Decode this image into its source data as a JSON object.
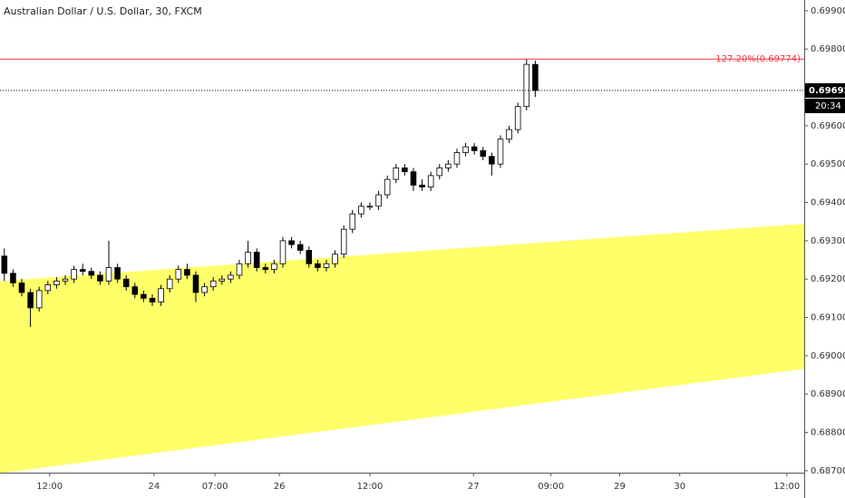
{
  "chart_data": {
    "type": "candlestick",
    "title": "Australian Dollar / U.S. Dollar, 30, FXCM",
    "x": [
      0,
      1,
      2,
      3,
      4,
      5,
      6,
      7,
      8,
      9,
      10,
      11,
      12,
      13,
      14,
      15,
      16,
      17,
      18,
      19,
      20,
      21,
      22,
      23,
      24,
      25,
      26,
      27,
      28,
      29,
      30,
      31,
      32,
      33,
      34,
      35,
      36,
      37,
      38,
      39,
      40,
      41,
      42,
      43,
      44,
      45,
      46,
      47,
      48,
      49,
      50,
      51,
      52,
      53,
      54,
      55,
      56,
      57,
      58,
      59,
      60,
      61
    ],
    "open": [
      0.6926,
      0.69215,
      0.6919,
      0.69165,
      0.69125,
      0.6917,
      0.69185,
      0.69195,
      0.692,
      0.69225,
      0.6922,
      0.6921,
      0.69195,
      0.6923,
      0.692,
      0.6918,
      0.6916,
      0.6915,
      0.6914,
      0.69175,
      0.692,
      0.69225,
      0.6921,
      0.69165,
      0.6918,
      0.69195,
      0.692,
      0.6921,
      0.6924,
      0.6927,
      0.6923,
      0.69225,
      0.6924,
      0.693,
      0.6929,
      0.69275,
      0.6924,
      0.6923,
      0.6924,
      0.69265,
      0.6933,
      0.6937,
      0.6939,
      0.6939,
      0.6942,
      0.6946,
      0.6949,
      0.6948,
      0.69445,
      0.6944,
      0.6947,
      0.6949,
      0.695,
      0.6953,
      0.69545,
      0.69535,
      0.6952,
      0.695,
      0.69565,
      0.6959,
      0.6965,
      0.6976
    ],
    "high": [
      0.6928,
      0.69225,
      0.692,
      0.69175,
      0.6918,
      0.69195,
      0.69205,
      0.6921,
      0.69235,
      0.6924,
      0.6923,
      0.6922,
      0.693,
      0.6924,
      0.6921,
      0.6919,
      0.6917,
      0.6916,
      0.69185,
      0.6921,
      0.69235,
      0.6924,
      0.6922,
      0.6919,
      0.69205,
      0.6921,
      0.6922,
      0.6925,
      0.693,
      0.6928,
      0.6924,
      0.6925,
      0.6931,
      0.6931,
      0.693,
      0.69285,
      0.6925,
      0.6925,
      0.69275,
      0.6934,
      0.6938,
      0.694,
      0.694,
      0.6943,
      0.6947,
      0.695,
      0.695,
      0.6949,
      0.6946,
      0.6948,
      0.695,
      0.6951,
      0.6954,
      0.69555,
      0.69555,
      0.69545,
      0.6953,
      0.69575,
      0.696,
      0.6966,
      0.69774,
      0.6977
    ],
    "low": [
      0.69195,
      0.6918,
      0.69155,
      0.69075,
      0.69115,
      0.6916,
      0.69175,
      0.69185,
      0.6919,
      0.6921,
      0.692,
      0.69185,
      0.69185,
      0.6919,
      0.6917,
      0.6915,
      0.6914,
      0.6913,
      0.6913,
      0.69165,
      0.6919,
      0.692,
      0.6914,
      0.69155,
      0.6917,
      0.69185,
      0.6919,
      0.692,
      0.6923,
      0.6922,
      0.69215,
      0.69215,
      0.6923,
      0.6928,
      0.69265,
      0.6923,
      0.6922,
      0.6922,
      0.6923,
      0.69255,
      0.6932,
      0.6936,
      0.6938,
      0.6938,
      0.6941,
      0.6945,
      0.6947,
      0.6943,
      0.6943,
      0.6943,
      0.6946,
      0.6948,
      0.6949,
      0.6952,
      0.69525,
      0.6951,
      0.6947,
      0.6949,
      0.69555,
      0.6958,
      0.6964,
      0.69675
    ],
    "close": [
      0.69215,
      0.6919,
      0.69165,
      0.69125,
      0.6917,
      0.69185,
      0.69195,
      0.692,
      0.69225,
      0.6922,
      0.6921,
      0.69195,
      0.6923,
      0.692,
      0.6918,
      0.6916,
      0.6915,
      0.6914,
      0.69175,
      0.692,
      0.69225,
      0.6921,
      0.69165,
      0.6918,
      0.69195,
      0.692,
      0.6921,
      0.6924,
      0.6927,
      0.6923,
      0.69225,
      0.6924,
      0.693,
      0.6929,
      0.69275,
      0.6924,
      0.6923,
      0.6924,
      0.69265,
      0.6933,
      0.6937,
      0.6939,
      0.6939,
      0.6942,
      0.6946,
      0.6949,
      0.6948,
      0.69445,
      0.6944,
      0.6947,
      0.6949,
      0.695,
      0.6953,
      0.69545,
      0.69535,
      0.6952,
      0.695,
      0.69565,
      0.6959,
      0.6965,
      0.6976,
      0.69692
    ],
    "up_color": "#ffffff",
    "down_color": "#000000",
    "xlim": [
      -0.5,
      91.9
    ],
    "xticks": [
      {
        "value": 5.2,
        "label": "12:00"
      },
      {
        "value": 17.2,
        "label": "24"
      },
      {
        "value": 24.2,
        "label": "07:00"
      },
      {
        "value": 31.6,
        "label": "26"
      },
      {
        "value": 42,
        "label": "12:00"
      },
      {
        "value": 53.9,
        "label": "27"
      },
      {
        "value": 62.8,
        "label": "09:00"
      },
      {
        "value": 70.7,
        "label": "29"
      },
      {
        "value": 77.6,
        "label": "30"
      },
      {
        "value": 89.9,
        "label": "12:00"
      }
    ],
    "ylim": [
      0.68695,
      0.69928
    ],
    "yticks": [
      {
        "value": 0.699,
        "label": "0.69900"
      },
      {
        "value": 0.698,
        "label": "0.69800"
      },
      {
        "value": 0.697,
        "label": "0.69700"
      },
      {
        "value": 0.696,
        "label": "0.69600"
      },
      {
        "value": 0.695,
        "label": "0.69500"
      },
      {
        "value": 0.694,
        "label": "0.69400"
      },
      {
        "value": 0.693,
        "label": "0.69300"
      },
      {
        "value": 0.692,
        "label": "0.69200"
      },
      {
        "value": 0.691,
        "label": "0.69100"
      },
      {
        "value": 0.69,
        "label": "0.69000"
      },
      {
        "value": 0.689,
        "label": "0.68900"
      },
      {
        "value": 0.688,
        "label": "0.68800"
      },
      {
        "value": 0.687,
        "label": "0.68700"
      }
    ],
    "channel": {
      "upper": [
        0.69194,
        0.69343
      ],
      "lower": [
        0.68695,
        0.68967
      ],
      "color": "#ffff6a"
    },
    "level": {
      "value": 0.69774,
      "label": "127.20%(0.69774)",
      "color": "#f23645"
    },
    "last_price": 0.69692,
    "countdown": "20:34"
  }
}
